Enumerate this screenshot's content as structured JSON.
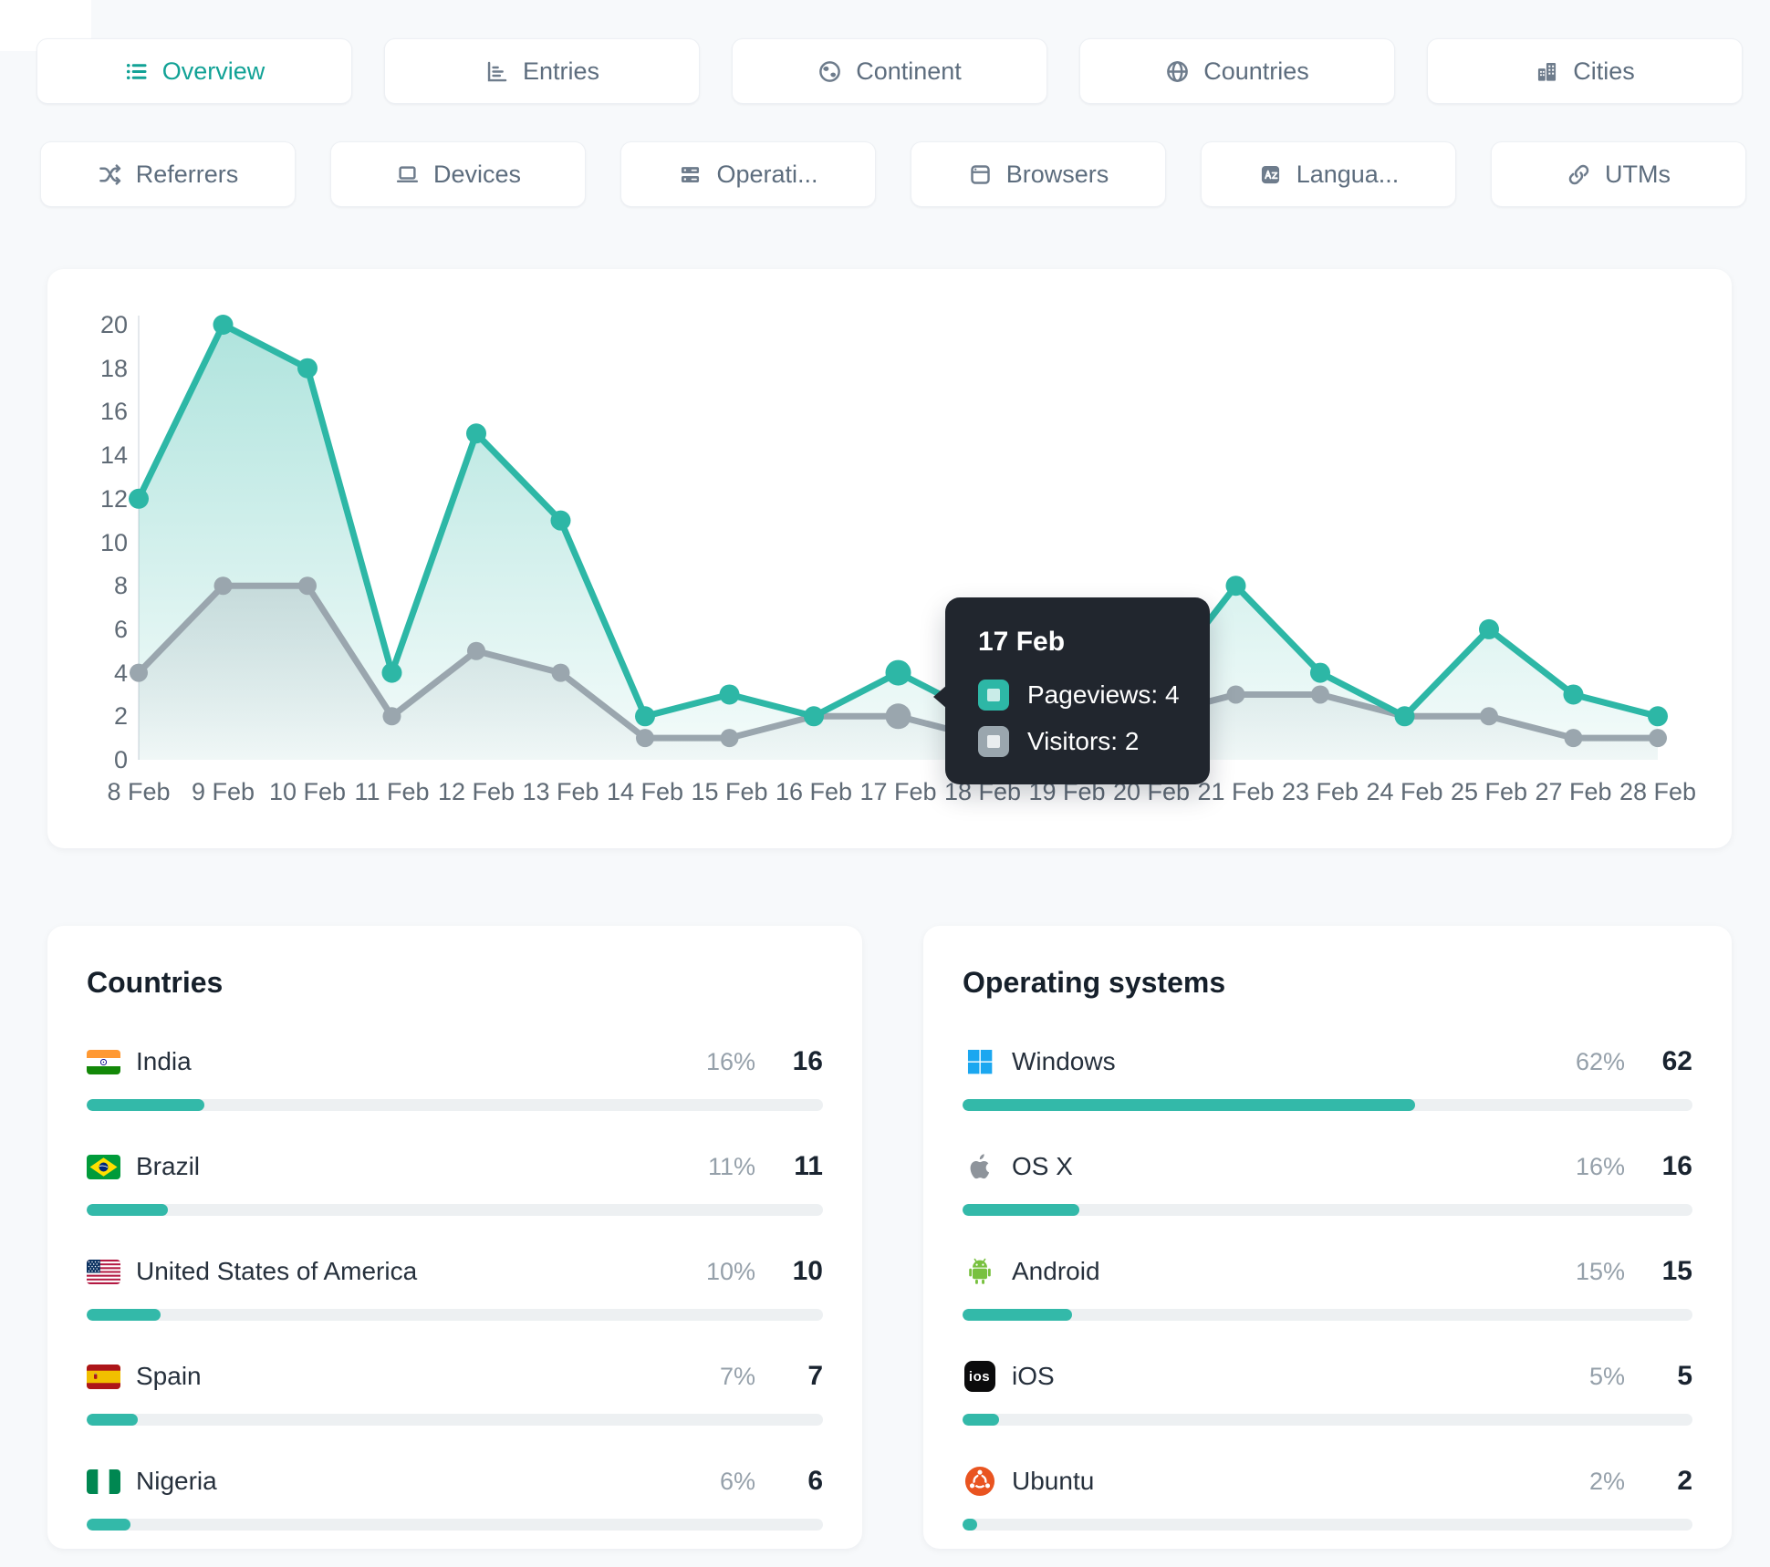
{
  "page": {
    "background": "#f7f9fb"
  },
  "tabs_row1": [
    {
      "label": "Overview",
      "icon": "list-icon",
      "active": true
    },
    {
      "label": "Entries",
      "icon": "bar-chart-icon",
      "active": false
    },
    {
      "label": "Continent",
      "icon": "earth-icon",
      "active": false
    },
    {
      "label": "Countries",
      "icon": "globe-icon",
      "active": false
    },
    {
      "label": "Cities",
      "icon": "buildings-icon",
      "active": false
    }
  ],
  "tabs_row2": [
    {
      "label": "Referrers",
      "icon": "shuffle-icon"
    },
    {
      "label": "Devices",
      "icon": "laptop-icon"
    },
    {
      "label": "Operati...",
      "icon": "server-icon"
    },
    {
      "label": "Browsers",
      "icon": "browser-window-icon"
    },
    {
      "label": "Langua...",
      "icon": "translate-icon"
    },
    {
      "label": "UTMs",
      "icon": "link-icon"
    }
  ],
  "chart_data": {
    "type": "line",
    "categories": [
      "8 Feb",
      "9 Feb",
      "10 Feb",
      "11 Feb",
      "12 Feb",
      "13 Feb",
      "14 Feb",
      "15 Feb",
      "16 Feb",
      "17 Feb",
      "18 Feb",
      "19 Feb",
      "20 Feb",
      "21 Feb",
      "23 Feb",
      "24 Feb",
      "25 Feb",
      "27 Feb",
      "28 Feb"
    ],
    "series": [
      {
        "name": "Pageviews",
        "color": "#2db7a6",
        "values": [
          12,
          20,
          18,
          4,
          15,
          11,
          2,
          3,
          2,
          4,
          2,
          1,
          3,
          8,
          4,
          2,
          6,
          3,
          2
        ]
      },
      {
        "name": "Visitors",
        "color": "#9aa6ae",
        "values": [
          4,
          8,
          8,
          2,
          5,
          4,
          1,
          1,
          2,
          2,
          1,
          1,
          2,
          3,
          3,
          2,
          2,
          1,
          1
        ]
      }
    ],
    "ylim": [
      0,
      20
    ],
    "ytick_step": 2,
    "grid": false,
    "legend": "none",
    "area_fill": true,
    "highlight_index": 9
  },
  "tooltip": {
    "title": "17 Feb",
    "rows": [
      {
        "series": "Pageviews",
        "value": 4,
        "text": "Pageviews: 4",
        "color": "#2db7a6"
      },
      {
        "series": "Visitors",
        "value": 2,
        "text": "Visitors: 2",
        "color": "#9aa6ae"
      }
    ]
  },
  "countries": {
    "title": "Countries",
    "rows": [
      {
        "name": "India",
        "percent": "16%",
        "pct": 16,
        "value": "16",
        "flag": "india-flag"
      },
      {
        "name": "Brazil",
        "percent": "11%",
        "pct": 11,
        "value": "11",
        "flag": "brazil-flag"
      },
      {
        "name": "United States of America",
        "percent": "10%",
        "pct": 10,
        "value": "10",
        "flag": "usa-flag"
      },
      {
        "name": "Spain",
        "percent": "7%",
        "pct": 7,
        "value": "7",
        "flag": "spain-flag"
      },
      {
        "name": "Nigeria",
        "percent": "6%",
        "pct": 6,
        "value": "6",
        "flag": "nigeria-flag"
      }
    ]
  },
  "operating_systems": {
    "title": "Operating systems",
    "rows": [
      {
        "name": "Windows",
        "percent": "62%",
        "pct": 62,
        "value": "62",
        "icon": "windows-icon"
      },
      {
        "name": "OS X",
        "percent": "16%",
        "pct": 16,
        "value": "16",
        "icon": "apple-icon"
      },
      {
        "name": "Android",
        "percent": "15%",
        "pct": 15,
        "value": "15",
        "icon": "android-icon"
      },
      {
        "name": "iOS",
        "percent": "5%",
        "pct": 5,
        "value": "5",
        "icon": "ios-icon"
      },
      {
        "name": "Ubuntu",
        "percent": "2%",
        "pct": 2,
        "value": "2",
        "icon": "ubuntu-icon"
      }
    ]
  },
  "colors": {
    "accent": "#2db7a6",
    "visitors": "#9aa6ae",
    "tab_text": "#5d6d7e",
    "tab_active": "#12a296",
    "tooltip_bg": "#21262e",
    "bar_track": "#edf0f2",
    "axis_label": "#5f6a75"
  }
}
